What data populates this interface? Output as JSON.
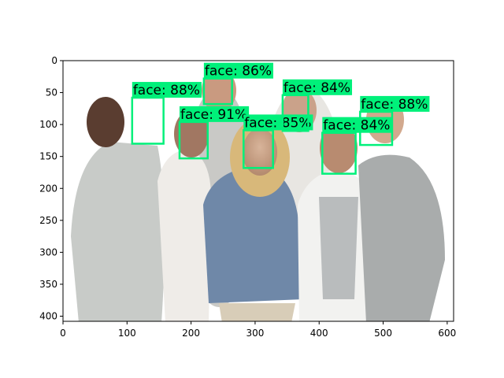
{
  "axes": {
    "x_ticks": [
      0,
      100,
      200,
      300,
      400,
      500,
      600
    ],
    "y_ticks": [
      0,
      50,
      100,
      150,
      200,
      250,
      300,
      350,
      400
    ],
    "x_range": [
      0,
      610
    ],
    "y_range": [
      408,
      0
    ]
  },
  "image": {
    "description_colors": {
      "background": "#ffffff",
      "box_color": "#00f07a"
    }
  },
  "detections": [
    {
      "label": "face: 88%",
      "x1": 108,
      "y1": 58,
      "x2": 157,
      "y2": 130
    },
    {
      "label": "face: 86%",
      "x1": 220,
      "y1": 28,
      "x2": 264,
      "y2": 68
    },
    {
      "label": "face: 91%",
      "x1": 182,
      "y1": 96,
      "x2": 226,
      "y2": 153
    },
    {
      "label": "face: 85%",
      "x1": 282,
      "y1": 109,
      "x2": 328,
      "y2": 168
    },
    {
      "label": "face: 84%",
      "x1": 343,
      "y1": 54,
      "x2": 383,
      "y2": 110
    },
    {
      "label": "face: 84%",
      "x1": 405,
      "y1": 113,
      "x2": 457,
      "y2": 177
    },
    {
      "label": "face: 88%",
      "x1": 464,
      "y1": 80,
      "x2": 514,
      "y2": 132
    }
  ]
}
